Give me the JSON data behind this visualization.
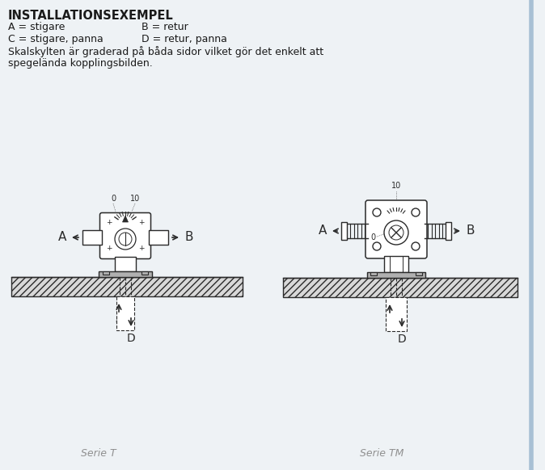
{
  "title": "INSTALLATIONSEXEMPEL",
  "bg_color": "#eef2f5",
  "fg_color": "#1a1a1a",
  "line_color": "#2a2a2a",
  "gray_fill": "#b0b0b0",
  "light_gray": "#d8d8d8",
  "white": "#ffffff",
  "hatch_bg": "#c8c8c8",
  "serie_t_label": "Serie T",
  "serie_tm_label": "Serie TM",
  "right_border_color": "#a8c0d4"
}
